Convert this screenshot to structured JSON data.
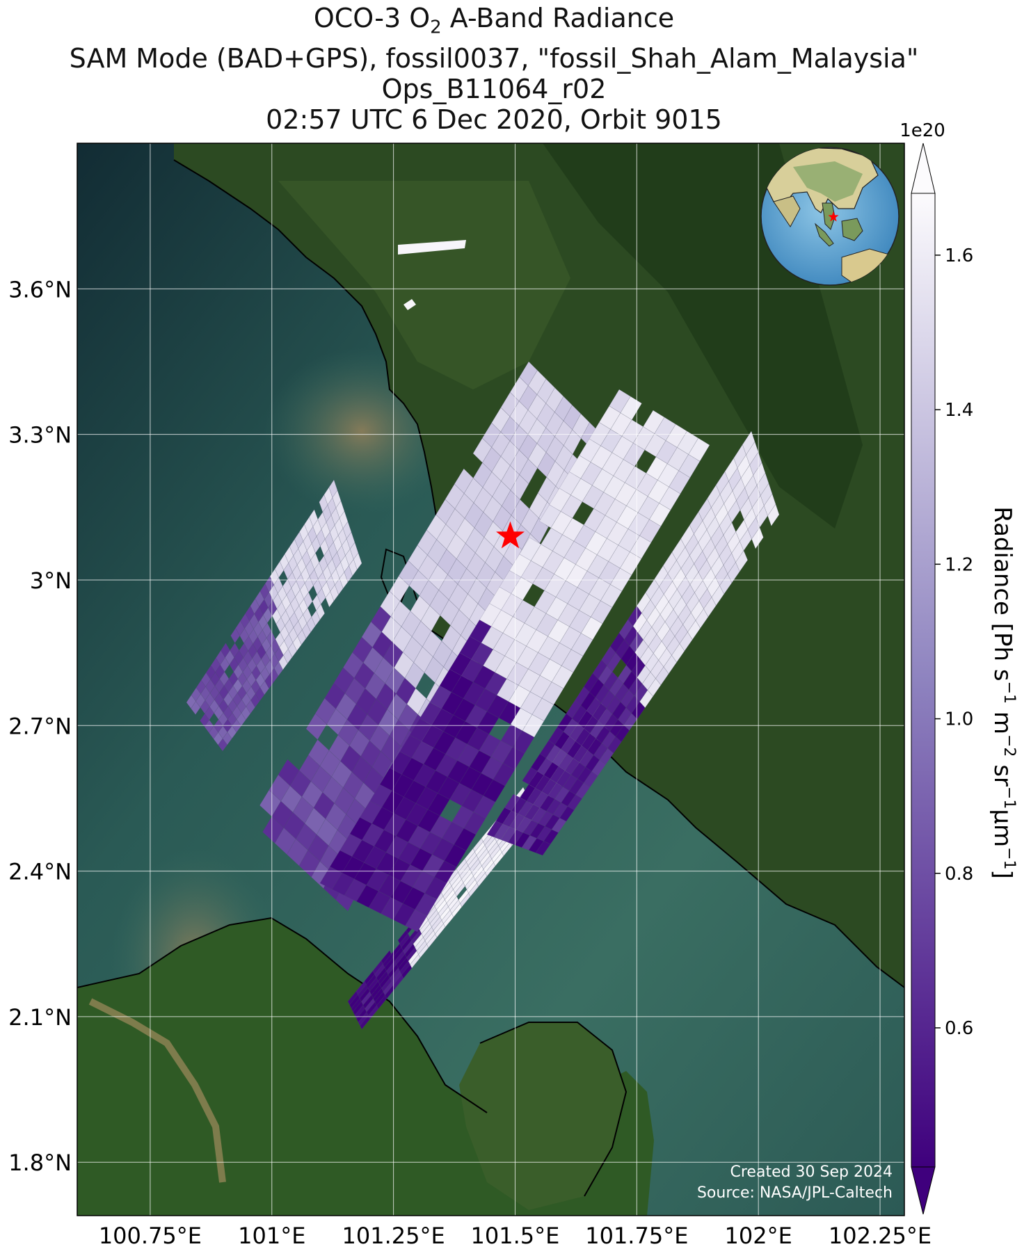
{
  "title": {
    "line1_prefix": "OCO-3 O",
    "line1_sub": "2",
    "line1_suffix": " A-Band Radiance",
    "line2": "SAM Mode (BAD+GPS), fossil0037, \"fossil_Shah_Alam_Malaysia\"",
    "line3": "Ops_B11064_r02",
    "line4": "02:57 UTC 6 Dec 2020, Orbit 9015"
  },
  "map": {
    "x_ticks": [
      "100.75°E",
      "101°E",
      "101.25°E",
      "101.5°E",
      "101.75°E",
      "102°E",
      "102.25°E"
    ],
    "y_ticks": [
      "3.6°N",
      "3.3°N",
      "3°N",
      "2.7°N",
      "2.4°N",
      "2.1°N",
      "1.8°N"
    ],
    "lon_range": [
      100.6,
      102.3
    ],
    "lat_range": [
      1.69,
      3.9
    ],
    "target_marker": {
      "name": "fossil_Shah_Alam_Malaysia",
      "lon": 101.49,
      "lat": 3.09,
      "symbol": "red-star"
    },
    "inset": "orthographic-globe-with-target-star",
    "credit_line1": "Created 30 Sep 2024",
    "credit_line2": "Source: NASA/JPL-Caltech"
  },
  "colorbar": {
    "multiplier": "1e20",
    "tick_labels": [
      "1.6",
      "1.4",
      "1.2",
      "1.0",
      "0.8",
      "0.6"
    ],
    "tick_values": [
      1.6,
      1.4,
      1.2,
      1.0,
      0.8,
      0.6
    ],
    "range": [
      0.42,
      1.68
    ],
    "colormap": "Purples_r",
    "color_low": "#3f007d",
    "color_mid": "#8e83bf",
    "color_high": "#fcfbfd",
    "label": "Radiance [Ph s⁻¹ m⁻² sr⁻¹μm⁻¹]",
    "extend": "both"
  },
  "chart_data": {
    "type": "heatmap",
    "title": "OCO-3 O2 A-Band Radiance",
    "xlabel": "",
    "ylabel": "",
    "variable": "Radiance",
    "units": "Ph s-1 m-2 sr-1 um-1 (×1e20)",
    "x_range_lon": [
      100.6,
      102.3
    ],
    "y_range_lat": [
      1.69,
      3.9
    ],
    "swaths": [
      {
        "name": "swath-1",
        "land_value": 1.6,
        "ocean_value": 0.45
      },
      {
        "name": "swath-2",
        "land_value": 1.5,
        "ocean_value": 0.8
      },
      {
        "name": "swath-3",
        "land_value": 1.45,
        "ocean_value": 0.75
      },
      {
        "name": "swath-4",
        "land_value": 1.55,
        "ocean_value": 0.5
      },
      {
        "name": "swath-5",
        "land_value": 1.55,
        "ocean_value": 0.55
      }
    ]
  }
}
